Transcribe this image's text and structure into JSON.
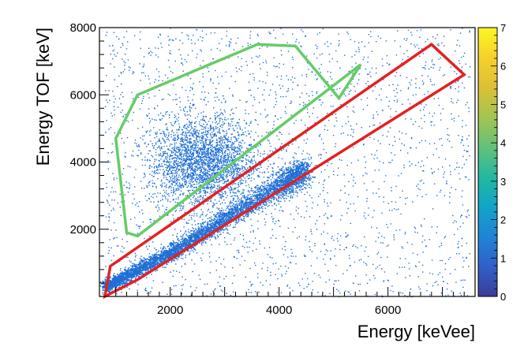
{
  "chart_data": {
    "type": "scatter",
    "title": "",
    "xlabel": "Energy [keVee]",
    "ylabel": "Energy TOF [keV]",
    "xlim": [
      700,
      7600
    ],
    "ylim": [
      0,
      8000
    ],
    "x_ticks": [
      2000,
      4000,
      6000
    ],
    "x_tick_labels": [
      "2000",
      "4000",
      "6000"
    ],
    "y_ticks": [
      2000,
      4000,
      6000,
      8000
    ],
    "y_tick_labels": [
      "2000",
      "4000",
      "6000",
      "8000"
    ],
    "grid": false,
    "legend": "none",
    "colorbar": {
      "min": 0,
      "max": 7,
      "ticks": [
        0,
        1,
        2,
        3,
        4,
        5,
        6,
        7
      ],
      "tick_labels": [
        "0",
        "1",
        "2",
        "3",
        "4",
        "5",
        "6",
        "7"
      ],
      "colormap": [
        "#3b3d99",
        "#3060c8",
        "#1f84d6",
        "#12a4c9",
        "#24b8a0",
        "#63c17a",
        "#a5c452",
        "#dcc035",
        "#f6d12c",
        "#fdf623"
      ]
    },
    "point_color": "#1f6fd6",
    "point_density_regions": [
      {
        "name": "gamma band",
        "points": [
          [
            800,
            300
          ],
          [
            2000,
            1300
          ],
          [
            3000,
            2300
          ],
          [
            4000,
            3300
          ],
          [
            4500,
            3800
          ]
        ],
        "approx_count": 5500
      },
      {
        "name": "neutron cluster",
        "center": [
          2600,
          4000
        ],
        "spread": [
          900,
          1100
        ],
        "approx_count": 2800
      },
      {
        "name": "background",
        "xrange": [
          800,
          7500
        ],
        "yrange": [
          0,
          8000
        ],
        "approx_count": 2200
      }
    ],
    "regions": [
      {
        "color": "#66cc66",
        "polygon": [
          [
            1200,
            1900
          ],
          [
            1400,
            1800
          ],
          [
            5500,
            6900
          ],
          [
            5100,
            5900
          ],
          [
            4300,
            7450
          ],
          [
            3600,
            7500
          ],
          [
            1400,
            6000
          ],
          [
            1000,
            4700
          ]
        ]
      },
      {
        "color": "#e52020",
        "polygon": [
          [
            800,
            0
          ],
          [
            900,
            900
          ],
          [
            6800,
            7500
          ],
          [
            7400,
            6600
          ],
          [
            1400,
            500
          ]
        ]
      }
    ]
  }
}
